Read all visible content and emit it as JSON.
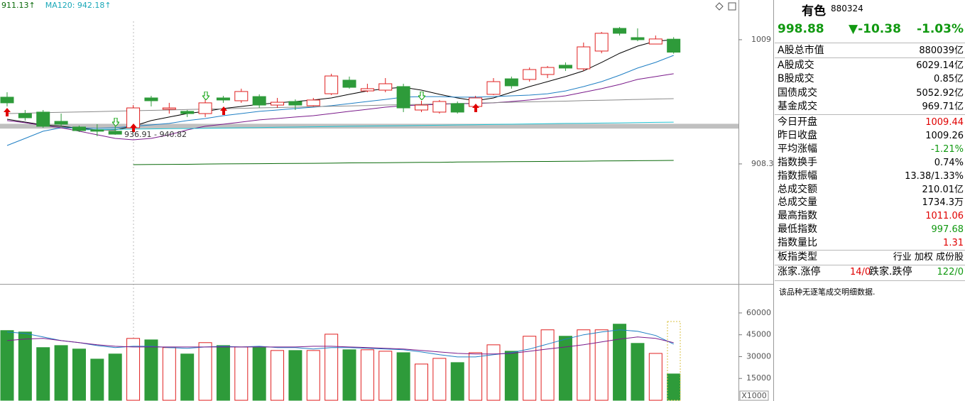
{
  "chart_data": [
    {
      "type": "candlestick",
      "labels": [
        {
          "text": "911.13↑",
          "color": "#0a6a0a"
        },
        {
          "text": "MA120: 942.18↑",
          "color": "#1aa8b8"
        }
      ],
      "categories": [
        null,
        null,
        null,
        null,
        null,
        null,
        null,
        null,
        null,
        null,
        null,
        null,
        null,
        null,
        null,
        null,
        null,
        null,
        null,
        null,
        null,
        null,
        null,
        null,
        null,
        null,
        null,
        null,
        null,
        null,
        null,
        null,
        null,
        null,
        null,
        null,
        null,
        null
      ],
      "open": [
        962.4,
        949.1,
        950.3,
        942.8,
        938.2,
        935.9,
        934.8,
        937.6,
        961.8,
        952.6,
        950.9,
        949.1,
        961.8,
        959.5,
        962.9,
        956.0,
        958.9,
        955.5,
        965.2,
        976.2,
        967.5,
        968.1,
        971.0,
        952.0,
        950.3,
        957.2,
        954.9,
        964.7,
        977.3,
        976.8,
        980.8,
        988.3,
        985.4,
        999.8,
        1018.2,
        1010.7,
        1005.5,
        1009.44
      ],
      "close": [
        957.8,
        945.7,
        938.8,
        940.5,
        935.3,
        934.8,
        932.4,
        953.7,
        959.5,
        953.7,
        949.1,
        957.8,
        960.1,
        967.0,
        956.0,
        958.3,
        956.0,
        960.1,
        979.6,
        970.4,
        969.3,
        973.3,
        953.7,
        956.0,
        958.9,
        950.3,
        961.8,
        975.0,
        971.6,
        984.8,
        986.5,
        986.0,
        1003.2,
        1014.2,
        1014.2,
        1009.0,
        1009.6,
        998.88
      ],
      "high": [
        966.4,
        952.0,
        952.0,
        949.1,
        939.4,
        940.5,
        943.4,
        956.0,
        963.5,
        957.8,
        952.0,
        960.6,
        963.5,
        969.3,
        964.7,
        961.8,
        960.6,
        961.8,
        981.4,
        979.1,
        973.3,
        977.9,
        973.3,
        959.5,
        960.1,
        958.9,
        963.5,
        977.9,
        979.1,
        986.5,
        987.7,
        990.6,
        1006.7,
        1015.3,
        1019.3,
        1018.2,
        1012.4,
        1011.06
      ],
      "low": [
        954.9,
        943.4,
        937.6,
        938.8,
        934.2,
        930.7,
        931.9,
        934.8,
        954.9,
        949.1,
        946.3,
        946.3,
        957.8,
        957.8,
        953.7,
        953.7,
        952.0,
        954.9,
        964.1,
        969.3,
        966.4,
        966.4,
        950.3,
        950.3,
        949.1,
        949.1,
        953.7,
        964.1,
        969.3,
        975.0,
        977.9,
        983.7,
        983.7,
        998.0,
        1012.4,
        1007.8,
        1005.5,
        997.68
      ],
      "up_color": "#e02020",
      "down_color": "#2e9b3a",
      "series": [
        {
          "color": "#000000",
          "values": [
            944.5,
            942.2,
            939.9,
            938.8,
            937.1,
            935.9,
            935.9,
            938.8,
            943.4,
            946.3,
            949.1,
            950.9,
            953.2,
            954.9,
            956.6,
            957.8,
            958.9,
            960.1,
            961.8,
            964.7,
            967.5,
            969.3,
            970.4,
            968.1,
            964.7,
            961.8,
            959.5,
            961.8,
            966.4,
            971.0,
            975.0,
            979.1,
            983.7,
            990.6,
            998.0,
            1003.8,
            1007.8,
            1009.0
          ]
        },
        {
          "color": "#1f7fc4",
          "values": [
            923.2,
            929.0,
            934.8,
            937.6,
            937.6,
            937.1,
            937.6,
            938.8,
            939.9,
            941.1,
            943.4,
            945.1,
            947.4,
            949.1,
            950.9,
            952.0,
            953.2,
            954.3,
            955.5,
            957.2,
            958.9,
            960.6,
            962.4,
            962.9,
            962.9,
            962.4,
            962.4,
            962.9,
            963.5,
            964.1,
            965.2,
            967.5,
            971.0,
            975.0,
            980.2,
            986.0,
            990.6,
            996.3
          ]
        },
        {
          "color": "#7a1a8a",
          "values": [
            943.4,
            941.7,
            939.4,
            937.6,
            934.8,
            931.9,
            929.0,
            927.8,
            929.0,
            931.9,
            935.9,
            938.8,
            940.5,
            942.2,
            944.0,
            945.1,
            946.3,
            947.4,
            949.1,
            950.9,
            952.6,
            954.3,
            955.5,
            956.0,
            956.6,
            957.2,
            957.2,
            957.8,
            958.9,
            960.1,
            961.8,
            963.5,
            966.4,
            969.3,
            972.7,
            976.8,
            979.1,
            981.4
          ]
        },
        {
          "color": "#8a8a8a",
          "values": [
            949.1,
            949.4,
            949.8,
            950.1,
            950.4,
            950.7,
            951.1,
            951.4,
            951.7,
            952.0,
            952.4,
            952.7,
            953.0,
            953.4,
            953.7,
            954.0,
            954.3,
            954.7,
            955.0,
            955.3,
            955.6,
            956.0,
            956.3,
            956.6,
            957.0,
            957.3,
            957.6,
            957.9,
            958.3,
            958.6,
            958.9,
            959.2,
            959.6,
            959.9,
            960.2,
            960.6,
            960.9,
            961.2
          ]
        },
        {
          "color": "#22c4d4",
          "values": [
            null,
            null,
            null,
            null,
            935.9,
            936.1,
            936.3,
            936.5,
            936.7,
            936.9,
            937.0,
            937.2,
            937.4,
            937.6,
            937.8,
            938.0,
            938.2,
            938.4,
            938.6,
            938.8,
            939.0,
            939.1,
            939.3,
            939.5,
            939.7,
            939.9,
            940.1,
            940.3,
            940.5,
            940.7,
            940.9,
            941.1,
            941.2,
            941.4,
            941.6,
            941.8,
            942.0,
            942.18
          ]
        },
        {
          "color": "#0a6a0a",
          "values": [
            null,
            null,
            null,
            null,
            null,
            null,
            null,
            907.7,
            907.8,
            907.9,
            908.0,
            908.2,
            908.3,
            908.4,
            908.5,
            908.6,
            908.7,
            908.8,
            908.9,
            909.1,
            909.2,
            909.3,
            909.4,
            909.5,
            909.6,
            909.8,
            909.9,
            910.0,
            910.1,
            910.2,
            910.3,
            910.4,
            910.5,
            910.7,
            910.8,
            910.9,
            911.0,
            911.13
          ]
        }
      ],
      "annotation": {
        "text": "936.91 - 940.82",
        "range": [
          936.91,
          940.82
        ],
        "color": "#c0c0c0"
      },
      "ylim": [
        811.0,
        1041.2
      ],
      "yticks": [
        1009,
        908.3
      ],
      "grid": false
    },
    {
      "type": "bar",
      "categories": [
        null,
        null,
        null,
        null,
        null,
        null,
        null,
        null,
        null,
        null,
        null,
        null,
        null,
        null,
        null,
        null,
        null,
        null,
        null,
        null,
        null,
        null,
        null,
        null,
        null,
        null,
        null,
        null,
        null,
        null,
        null,
        null,
        null,
        null,
        null,
        null,
        null,
        null
      ],
      "values": [
        47900,
        46900,
        36200,
        37600,
        35200,
        28300,
        31800,
        42500,
        41500,
        36200,
        31800,
        39600,
        37600,
        36600,
        36200,
        34200,
        34200,
        34200,
        45400,
        34700,
        34700,
        33700,
        32700,
        24900,
        28800,
        25900,
        32700,
        38100,
        33700,
        44000,
        48400,
        44000,
        48400,
        48400,
        52300,
        39100,
        32200,
        18100
      ],
      "series": [
        {
          "color": "#1f7fc4",
          "values": [
            46900,
            45900,
            43500,
            41000,
            39600,
            37600,
            36200,
            37100,
            37100,
            36200,
            35700,
            36600,
            37100,
            36600,
            37100,
            36200,
            36200,
            35200,
            36200,
            36200,
            35700,
            35200,
            34700,
            33200,
            31300,
            29800,
            29800,
            31300,
            32700,
            35200,
            38600,
            42000,
            45000,
            46900,
            48400,
            47400,
            44500,
            38600
          ]
        },
        {
          "color": "#7a1a8a",
          "values": [
            41000,
            42000,
            42500,
            41000,
            39600,
            38100,
            37100,
            36600,
            36600,
            36600,
            36600,
            36600,
            36600,
            36600,
            36600,
            36600,
            36600,
            37100,
            37100,
            36600,
            36200,
            35700,
            35200,
            34200,
            33200,
            32200,
            31800,
            31800,
            32200,
            33700,
            35200,
            36600,
            38100,
            40100,
            42000,
            43500,
            42500,
            39600
          ]
        }
      ],
      "unit_label": "X1000",
      "ylim": [
        0,
        78000
      ],
      "yticks": [
        15000,
        30000,
        45000,
        60000
      ],
      "grid": false
    }
  ],
  "quote_panel": {
    "name": "有色",
    "code": "880324",
    "price": "998.88",
    "change": "▼-10.38",
    "change_pct": "-1.03%",
    "quote_color": "#119911",
    "market_cap": {
      "label": "A股总市值",
      "value": "880039亿"
    },
    "volume_rows": [
      {
        "label": "A股成交",
        "value": "6029.14亿"
      },
      {
        "label": "B股成交",
        "value": "0.85亿"
      },
      {
        "label": "国债成交",
        "value": "5052.92亿"
      },
      {
        "label": "基金成交",
        "value": "969.71亿"
      }
    ],
    "stats": [
      {
        "label": "今日开盘",
        "value": "1009.44",
        "color": "#e00000"
      },
      {
        "label": "昨日收盘",
        "value": "1009.26"
      },
      {
        "label": "平均涨幅",
        "value": "-1.21%",
        "color": "#119911"
      },
      {
        "label": "指数换手",
        "value": "0.74%"
      },
      {
        "label": "指数振幅",
        "value": "13.38/1.33%"
      },
      {
        "label": "总成交额",
        "value": "210.01亿"
      },
      {
        "label": "总成交量",
        "value": "1734.3万"
      },
      {
        "label": "最高指数",
        "value": "1011.06",
        "color": "#e00000"
      },
      {
        "label": "最低指数",
        "value": "997.68",
        "color": "#119911"
      },
      {
        "label": "指数量比",
        "value": "1.31",
        "color": "#e00000"
      }
    ],
    "type_row": {
      "label": "板指类型",
      "value": "行业 加权 成份股"
    },
    "breadth": {
      "up_label": "涨家.涨停",
      "up": "14/0",
      "down_label": "跌家.跌停",
      "down": "122/0"
    },
    "note": "该品种无逐笔成交明细数据."
  }
}
